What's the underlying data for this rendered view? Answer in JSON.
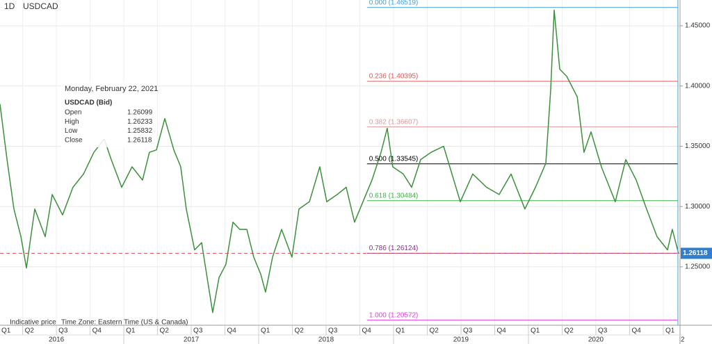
{
  "chart_data": {
    "type": "line",
    "interval": "1D",
    "title": "USDCAD",
    "x": [
      2016.082,
      2016.134,
      2016.185,
      2016.237,
      2016.278,
      2016.34,
      2016.417,
      2016.469,
      2016.546,
      2016.623,
      2016.701,
      2016.778,
      2016.855,
      2016.907,
      2016.984,
      2017.061,
      2017.139,
      2017.19,
      2017.242,
      2017.304,
      2017.371,
      2017.422,
      2017.463,
      2017.525,
      2017.577,
      2017.618,
      2017.659,
      2017.706,
      2017.757,
      2017.809,
      2017.86,
      2017.912,
      2017.963,
      2018.015,
      2018.051,
      2018.103,
      2018.17,
      2018.247,
      2018.299,
      2018.376,
      2018.453,
      2018.505,
      2018.582,
      2018.649,
      2018.711,
      2018.773,
      2018.84,
      2018.907,
      2018.953,
      2018.994,
      2019.072,
      2019.134,
      2019.201,
      2019.278,
      2019.371,
      2019.433,
      2019.495,
      2019.587,
      2019.69,
      2019.783,
      2019.871,
      2019.974,
      2020.052,
      2020.129,
      2020.165,
      2020.191,
      2020.232,
      2020.284,
      2020.362,
      2020.412,
      2020.464,
      2020.541,
      2020.644,
      2020.722,
      2020.799,
      2020.876,
      2020.954,
      2021.031,
      2021.067,
      2021.113
    ],
    "series": [
      {
        "color": "#3c8f3c",
        "values": [
          1.385,
          1.339,
          1.298,
          1.275,
          1.249,
          1.298,
          1.275,
          1.31,
          1.293,
          1.316,
          1.327,
          1.345,
          1.356,
          1.339,
          1.316,
          1.333,
          1.322,
          1.345,
          1.347,
          1.373,
          1.347,
          1.333,
          1.298,
          1.264,
          1.27,
          1.241,
          1.212,
          1.241,
          1.252,
          1.287,
          1.281,
          1.281,
          1.258,
          1.244,
          1.229,
          1.258,
          1.281,
          1.258,
          1.298,
          1.304,
          1.333,
          1.304,
          1.31,
          1.316,
          1.287,
          1.304,
          1.322,
          1.345,
          1.365,
          1.333,
          1.327,
          1.316,
          1.339,
          1.345,
          1.35,
          1.327,
          1.304,
          1.327,
          1.316,
          1.31,
          1.327,
          1.298,
          1.316,
          1.336,
          1.397,
          1.463,
          1.414,
          1.408,
          1.391,
          1.345,
          1.362,
          1.333,
          1.304,
          1.339,
          1.322,
          1.298,
          1.275,
          1.264,
          1.281,
          1.261
        ]
      }
    ],
    "xlim": [
      2016.082,
      2021.124
    ],
    "ylim": [
      1.2015,
      1.4714
    ],
    "yticks": [
      {
        "value": 1.25,
        "label": "1.25000"
      },
      {
        "value": 1.3,
        "label": "1.30000"
      },
      {
        "value": 1.35,
        "label": "1.35000"
      },
      {
        "value": 1.4,
        "label": "1.40000"
      },
      {
        "value": 1.45,
        "label": "1.45000"
      }
    ],
    "xticks": [
      {
        "value": 2016.0,
        "label": "Q1"
      },
      {
        "value": 2016.25,
        "label": "Q2"
      },
      {
        "value": 2016.5,
        "label": "Q3"
      },
      {
        "value": 2016.75,
        "label": "Q4"
      },
      {
        "value": 2017.0,
        "label": "Q1"
      },
      {
        "value": 2017.25,
        "label": "Q2"
      },
      {
        "value": 2017.5,
        "label": "Q3"
      },
      {
        "value": 2017.75,
        "label": "Q4"
      },
      {
        "value": 2018.0,
        "label": "Q1"
      },
      {
        "value": 2018.25,
        "label": "Q2"
      },
      {
        "value": 2018.5,
        "label": "Q3"
      },
      {
        "value": 2018.75,
        "label": "Q4"
      },
      {
        "value": 2019.0,
        "label": "Q1"
      },
      {
        "value": 2019.25,
        "label": "Q2"
      },
      {
        "value": 2019.5,
        "label": "Q3"
      },
      {
        "value": 2019.75,
        "label": "Q4"
      },
      {
        "value": 2020.0,
        "label": "Q1"
      },
      {
        "value": 2020.25,
        "label": "Q2"
      },
      {
        "value": 2020.5,
        "label": "Q3"
      },
      {
        "value": 2020.75,
        "label": "Q4"
      },
      {
        "value": 2021.0,
        "label": "Q1"
      }
    ],
    "edge_label": "2",
    "year_ticks": [
      2016,
      2017,
      2018,
      2019,
      2020
    ],
    "grid": true,
    "fib_start": 2018.803,
    "fib_levels": [
      {
        "value": 1.46519,
        "label": "0.000 (1.46519)",
        "color": "#3d9fd9"
      },
      {
        "value": 1.40395,
        "label": "0.236 (1.40395)",
        "color": "#e05555"
      },
      {
        "value": 1.36607,
        "label": "0.382 (1.36607)",
        "color": "#d99a9a"
      },
      {
        "value": 1.33545,
        "label": "0.500 (1.33545)",
        "color": "#000000"
      },
      {
        "value": 1.30484,
        "label": "0.618 (1.30484)",
        "color": "#3cb043"
      },
      {
        "value": 1.26124,
        "label": "0.786 (1.26124)",
        "color": "#8b2b8b"
      },
      {
        "value": 1.20572,
        "label": "1.000 (1.20572)",
        "color": "#e040e0"
      }
    ],
    "last_price": {
      "value": 1.26118,
      "label": "1.26118",
      "color": "#e05555"
    },
    "tooltip": {
      "date": "Monday, February 22, 2021",
      "title": "USDCAD (Bid)",
      "rows": [
        [
          "Open",
          1.26099
        ],
        [
          "High",
          1.26233
        ],
        [
          "Low",
          1.25832
        ],
        [
          "Close",
          1.26118
        ]
      ]
    },
    "footer": [
      "Indicative price",
      "Time Zone: Eastern Time (US & Canada)"
    ]
  }
}
